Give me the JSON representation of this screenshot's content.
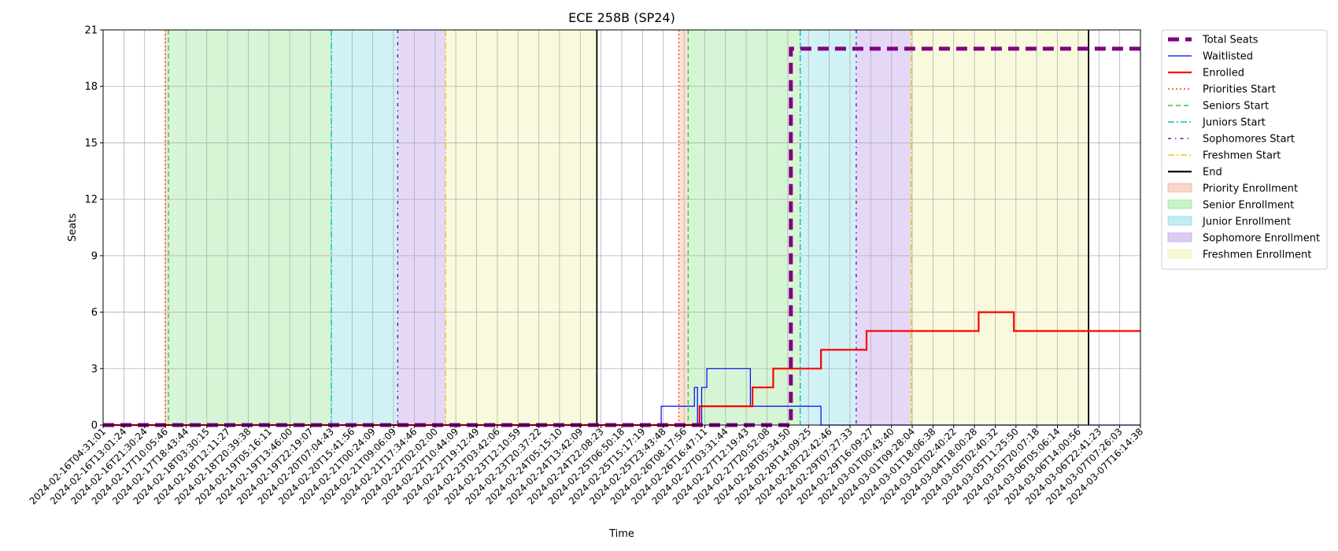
{
  "chart_data": {
    "type": "line",
    "title": "ECE 258B (SP24)",
    "xlabel": "Time",
    "ylabel": "Seats",
    "ylim": [
      0,
      21
    ],
    "yticks": [
      0,
      3,
      6,
      9,
      12,
      15,
      18,
      21
    ],
    "grid": true,
    "legend_position": "outside-right",
    "x_tick_labels": [
      "2024-02-16T04:31:01",
      "2024-02-16T13:01:24",
      "2024-02-16T21:30:24",
      "2024-02-17T10:05:46",
      "2024-02-17T18:43:44",
      "2024-02-18T03:30:15",
      "2024-02-18T12:11:27",
      "2024-02-18T20:39:38",
      "2024-02-19T05:16:11",
      "2024-02-19T13:46:00",
      "2024-02-19T22:19:07",
      "2024-02-20T07:04:43",
      "2024-02-20T15:41:56",
      "2024-02-21T00:24:09",
      "2024-02-21T09:06:09",
      "2024-02-21T17:34:46",
      "2024-02-22T02:02:00",
      "2024-02-22T10:44:09",
      "2024-02-22T19:12:49",
      "2024-02-23T03:42:06",
      "2024-02-23T12:10:59",
      "2024-02-23T20:37:22",
      "2024-02-24T05:15:10",
      "2024-02-24T13:42:09",
      "2024-02-24T22:08:23",
      "2024-02-25T06:50:18",
      "2024-02-25T15:17:19",
      "2024-02-25T23:43:48",
      "2024-02-26T08:17:56",
      "2024-02-26T16:47:11",
      "2024-02-27T03:31:44",
      "2024-02-27T12:19:43",
      "2024-02-27T20:52:08",
      "2024-02-28T05:34:50",
      "2024-02-28T14:09:25",
      "2024-02-28T22:42:46",
      "2024-02-29T07:27:33",
      "2024-02-29T16:09:27",
      "2024-03-01T00:43:40",
      "2024-03-01T09:28:04",
      "2024-03-01T18:06:38",
      "2024-03-02T02:40:22",
      "2024-03-04T18:00:28",
      "2024-03-05T02:40:32",
      "2024-03-05T11:25:50",
      "2024-03-05T20:07:18",
      "2024-03-06T05:06:14",
      "2024-03-06T14:00:56",
      "2024-03-06T22:41:23",
      "2024-03-07T07:26:03",
      "2024-03-07T16:14:38"
    ],
    "x_range": [
      0,
      50
    ],
    "series": [
      {
        "name": "Total Seats",
        "color": "#800080",
        "style": "thick-dashed",
        "points": [
          [
            0,
            0
          ],
          [
            33.15,
            0
          ],
          [
            33.15,
            20
          ],
          [
            50,
            20
          ]
        ]
      },
      {
        "name": "Waitlisted",
        "color": "#0000ff",
        "style": "thin-solid",
        "points": [
          [
            0,
            0
          ],
          [
            26.9,
            0
          ],
          [
            26.9,
            1
          ],
          [
            28.5,
            1
          ],
          [
            28.5,
            2
          ],
          [
            28.65,
            2
          ],
          [
            28.65,
            0
          ],
          [
            28.85,
            0
          ],
          [
            28.85,
            2
          ],
          [
            29.1,
            2
          ],
          [
            29.1,
            3
          ],
          [
            31.2,
            3
          ],
          [
            31.2,
            1
          ],
          [
            34.6,
            1
          ],
          [
            34.6,
            0
          ],
          [
            50,
            0
          ]
        ]
      },
      {
        "name": "Enrolled",
        "color": "#ff0000",
        "style": "solid",
        "points": [
          [
            0,
            0
          ],
          [
            28.75,
            0
          ],
          [
            28.75,
            1
          ],
          [
            31.3,
            1
          ],
          [
            31.3,
            2
          ],
          [
            32.3,
            2
          ],
          [
            32.3,
            3
          ],
          [
            34.6,
            3
          ],
          [
            34.6,
            4
          ],
          [
            36.8,
            4
          ],
          [
            36.8,
            5
          ],
          [
            42.2,
            5
          ],
          [
            42.2,
            6
          ],
          [
            43.9,
            6
          ],
          [
            43.9,
            5
          ],
          [
            50,
            5
          ]
        ]
      }
    ],
    "markers": [
      {
        "name": "Priorities Start",
        "color": "#ff4500",
        "style": "dotted",
        "x": [
          3.0,
          27.75
        ]
      },
      {
        "name": "Seniors Start",
        "color": "#32cd32",
        "style": "dashed",
        "x": [
          3.15,
          28.2
        ]
      },
      {
        "name": "Juniors Start",
        "color": "#00bfbf",
        "style": "dashdot",
        "x": [
          11.0,
          33.6
        ]
      },
      {
        "name": "Sophomores Start",
        "color": "#6a0dad",
        "style": "dashdot-dense",
        "x": [
          14.2,
          36.3
        ]
      },
      {
        "name": "Freshmen Start",
        "color": "#e6c619",
        "style": "dashdot",
        "x": [
          16.5,
          38.95
        ]
      },
      {
        "name": "End",
        "color": "#000000",
        "style": "solid",
        "x": [
          23.8,
          47.5
        ]
      }
    ],
    "regions": [
      {
        "name": "Priority Enrollment",
        "color": "#f4b69a",
        "spans": [
          [
            3.0,
            3.15
          ],
          [
            27.75,
            28.2
          ]
        ]
      },
      {
        "name": "Senior Enrollment",
        "color": "#9de89b",
        "spans": [
          [
            3.15,
            11.0
          ],
          [
            28.2,
            33.6
          ]
        ]
      },
      {
        "name": "Junior Enrollment",
        "color": "#8ee0e6",
        "spans": [
          [
            11.0,
            14.2
          ],
          [
            33.6,
            36.3
          ]
        ]
      },
      {
        "name": "Sophomore Enrollment",
        "color": "#bfa2ea",
        "spans": [
          [
            14.2,
            16.5
          ],
          [
            36.3,
            38.95
          ]
        ]
      },
      {
        "name": "Freshmen Enrollment",
        "color": "#f1f2ae",
        "spans": [
          [
            16.5,
            23.8
          ],
          [
            38.95,
            47.5
          ]
        ]
      }
    ],
    "legend": [
      {
        "label": "Total Seats",
        "kind": "line",
        "color": "#800080",
        "style": "thick-dashed"
      },
      {
        "label": "Waitlisted",
        "kind": "line",
        "color": "#0000ff",
        "style": "thin-solid"
      },
      {
        "label": "Enrolled",
        "kind": "line",
        "color": "#ff0000",
        "style": "solid"
      },
      {
        "label": "Priorities Start",
        "kind": "line",
        "color": "#ff4500",
        "style": "dotted"
      },
      {
        "label": "Seniors Start",
        "kind": "line",
        "color": "#32cd32",
        "style": "dashed"
      },
      {
        "label": "Juniors Start",
        "kind": "line",
        "color": "#00bfbf",
        "style": "dashdot"
      },
      {
        "label": "Sophomores Start",
        "kind": "line",
        "color": "#6a0dad",
        "style": "dashdot-dense"
      },
      {
        "label": "Freshmen Start",
        "kind": "line",
        "color": "#e6c619",
        "style": "dashdot"
      },
      {
        "label": "End",
        "kind": "line",
        "color": "#000000",
        "style": "solid"
      },
      {
        "label": "Priority Enrollment",
        "kind": "patch",
        "color": "#f4b69a"
      },
      {
        "label": "Senior Enrollment",
        "kind": "patch",
        "color": "#9de89b"
      },
      {
        "label": "Junior Enrollment",
        "kind": "patch",
        "color": "#8ee0e6"
      },
      {
        "label": "Sophomore Enrollment",
        "kind": "patch",
        "color": "#bfa2ea"
      },
      {
        "label": "Freshmen Enrollment",
        "kind": "patch",
        "color": "#f1f2ae"
      }
    ]
  }
}
